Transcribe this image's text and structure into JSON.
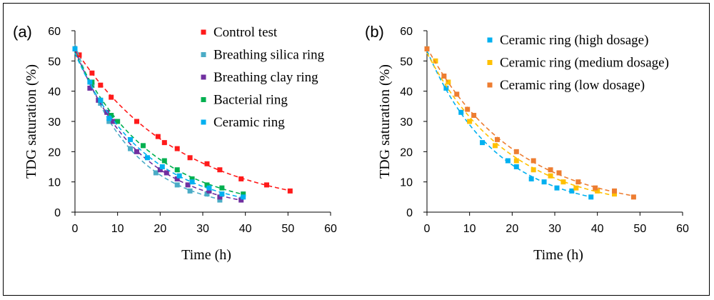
{
  "chart_data": [
    {
      "type": "scatter",
      "panel_label": "(a)",
      "xlabel": "Time (h)",
      "ylabel": "TDG saturation (%)",
      "xlim": [
        0,
        60
      ],
      "ylim": [
        0,
        60
      ],
      "xticks": [
        "0",
        "10",
        "20",
        "30",
        "40",
        "50",
        "60"
      ],
      "yticks": [
        "0",
        "10",
        "20",
        "30",
        "40",
        "50",
        "60"
      ],
      "grid": false,
      "legend_position": "top-right",
      "series": [
        {
          "name": "Control test",
          "color": "#ff1a1a",
          "x": [
            0,
            1,
            4,
            6,
            8.5,
            14.5,
            19.5,
            21,
            24,
            27,
            31,
            34,
            39,
            45,
            50.5
          ],
          "y": [
            54,
            52,
            46,
            42,
            38,
            30,
            25,
            23,
            21,
            18,
            16,
            14,
            11,
            9,
            7
          ]
        },
        {
          "name": "Breathing silica ring",
          "color": "#4bacc6",
          "x": [
            0,
            4,
            6,
            8,
            13,
            19,
            24,
            27,
            31,
            34
          ],
          "y": [
            54,
            42,
            36,
            30,
            21,
            13,
            9,
            7,
            6,
            4
          ]
        },
        {
          "name": "Breathing clay ring",
          "color": "#7030a0",
          "x": [
            0,
            3.5,
            5.5,
            7.5,
            9,
            14.5,
            20,
            21.5,
            24,
            26.5,
            31.5,
            34,
            39
          ],
          "y": [
            54,
            41,
            37,
            33,
            30,
            20,
            14,
            13,
            11,
            9,
            7,
            5,
            4
          ]
        },
        {
          "name": "Bacterial ring",
          "color": "#00b050",
          "x": [
            0,
            4,
            6,
            8.5,
            10,
            16,
            21,
            24,
            27.5,
            31,
            34.5,
            39.5
          ],
          "y": [
            54,
            43,
            37,
            32,
            30,
            22,
            17,
            14,
            11,
            9,
            8,
            6
          ]
        },
        {
          "name": "Ceramic ring",
          "color": "#00b0f0",
          "x": [
            0,
            3.5,
            6,
            8,
            13,
            17,
            20.5,
            24.5,
            27.5,
            31.5,
            34.5,
            39.5
          ],
          "y": [
            54,
            43,
            37,
            31,
            24,
            18,
            15,
            12,
            10,
            8,
            6,
            5
          ]
        }
      ],
      "trend_lines": "dashed exponential fit per series"
    },
    {
      "type": "scatter",
      "panel_label": "(b)",
      "xlabel": "Time (h)",
      "ylabel": "TDG saturation (%)",
      "xlim": [
        0,
        60
      ],
      "ylim": [
        0,
        60
      ],
      "xticks": [
        "0",
        "10",
        "20",
        "30",
        "40",
        "50",
        "60"
      ],
      "yticks": [
        "0",
        "10",
        "20",
        "30",
        "40",
        "50",
        "60"
      ],
      "grid": false,
      "legend_position": "top-right",
      "series": [
        {
          "name": "Ceramic ring (high dosage)",
          "color": "#00b0f0",
          "x": [
            0,
            4.5,
            8,
            13,
            19,
            21,
            24.5,
            27.5,
            30.5,
            34,
            38.5
          ],
          "y": [
            54,
            41,
            33,
            23,
            17,
            15,
            11,
            10,
            8,
            7,
            5
          ]
        },
        {
          "name": "Ceramic ring (medium dosage)",
          "color": "#ffc000",
          "x": [
            0,
            2,
            5,
            10,
            16,
            21,
            25,
            29,
            32,
            35,
            40,
            44
          ],
          "y": [
            54,
            50,
            43,
            30,
            22,
            17,
            14,
            12,
            10,
            8,
            7,
            6
          ]
        },
        {
          "name": "Ceramic ring (low dosage)",
          "color": "#ed7d31",
          "x": [
            0,
            4,
            7,
            9.5,
            11,
            16.5,
            21,
            25,
            29,
            31,
            35.5,
            39.5,
            44,
            48.5
          ],
          "y": [
            54,
            45,
            39,
            34,
            32,
            24,
            20,
            17,
            14,
            13,
            10,
            8,
            7,
            5
          ]
        }
      ],
      "trend_lines": "dashed exponential fit per series"
    }
  ]
}
